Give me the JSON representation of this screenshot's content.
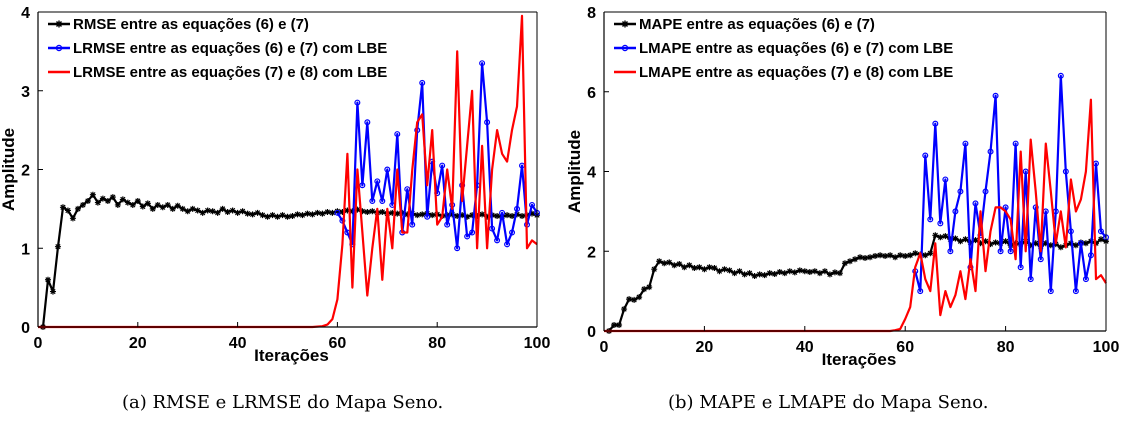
{
  "figure": {
    "captions": [
      "(a) RMSE e LRMSE do Mapa Seno.",
      "(b) MAPE e LMAPE do Mapa Seno."
    ]
  },
  "chart_data": [
    {
      "type": "line",
      "title": "",
      "xlabel": "Iterações",
      "ylabel": "Amplitude",
      "xlim": [
        0,
        100
      ],
      "ylim": [
        0,
        4
      ],
      "xticks": [
        "0",
        "20",
        "40",
        "60",
        "80",
        "100"
      ],
      "yticks": [
        "0",
        "1",
        "2",
        "3",
        "4"
      ],
      "legend_position": "top-left",
      "series": [
        {
          "name": "RMSE entre as equações (6) e (7)",
          "color": "#000000",
          "marker": "star",
          "x": [
            1,
            2,
            3,
            4,
            5,
            6,
            7,
            8,
            9,
            10,
            11,
            12,
            13,
            14,
            15,
            16,
            17,
            18,
            19,
            20,
            21,
            22,
            23,
            24,
            25,
            26,
            27,
            28,
            29,
            30,
            31,
            32,
            33,
            34,
            35,
            36,
            37,
            38,
            39,
            40,
            41,
            42,
            43,
            44,
            45,
            46,
            47,
            48,
            49,
            50,
            51,
            52,
            53,
            54,
            55,
            56,
            57,
            58,
            59,
            60,
            61,
            62,
            63,
            64,
            65,
            66,
            67,
            68,
            69,
            70,
            71,
            72,
            73,
            74,
            75,
            76,
            77,
            78,
            79,
            80,
            81,
            82,
            83,
            84,
            85,
            86,
            87,
            88,
            89,
            90,
            91,
            92,
            93,
            94,
            95,
            96,
            97,
            98,
            99,
            100
          ],
          "y": [
            0,
            0.6,
            0.45,
            1.02,
            1.52,
            1.48,
            1.38,
            1.5,
            1.55,
            1.6,
            1.68,
            1.58,
            1.63,
            1.6,
            1.65,
            1.55,
            1.62,
            1.58,
            1.55,
            1.6,
            1.53,
            1.57,
            1.5,
            1.55,
            1.52,
            1.55,
            1.5,
            1.54,
            1.5,
            1.47,
            1.5,
            1.48,
            1.45,
            1.48,
            1.47,
            1.45,
            1.5,
            1.46,
            1.48,
            1.45,
            1.47,
            1.44,
            1.43,
            1.45,
            1.42,
            1.4,
            1.42,
            1.4,
            1.42,
            1.4,
            1.41,
            1.43,
            1.42,
            1.44,
            1.43,
            1.45,
            1.44,
            1.46,
            1.45,
            1.47,
            1.46,
            1.48,
            1.47,
            1.49,
            1.47,
            1.46,
            1.47,
            1.45,
            1.46,
            1.44,
            1.45,
            1.44,
            1.45,
            1.43,
            1.44,
            1.42,
            1.43,
            1.44,
            1.42,
            1.43,
            1.41,
            1.42,
            1.43,
            1.41,
            1.42,
            1.4,
            1.42,
            1.41,
            1.43,
            1.4,
            1.42,
            1.41,
            1.4,
            1.42,
            1.41,
            1.43,
            1.41,
            1.42,
            1.44,
            1.42
          ]
        },
        {
          "name": "LRMSE entre as equações (6) e (7) com LBE",
          "color": "#0000ff",
          "marker": "circle",
          "x": [
            60,
            61,
            62,
            63,
            64,
            65,
            66,
            67,
            68,
            69,
            70,
            71,
            72,
            73,
            74,
            75,
            76,
            77,
            78,
            79,
            80,
            81,
            82,
            83,
            84,
            85,
            86,
            87,
            88,
            89,
            90,
            91,
            92,
            93,
            94,
            95,
            96,
            97,
            98,
            99,
            100
          ],
          "y": [
            1.45,
            1.35,
            1.2,
            1.05,
            2.85,
            1.8,
            2.6,
            1.6,
            1.85,
            1.6,
            2.0,
            1.55,
            2.45,
            1.2,
            1.75,
            1.3,
            2.5,
            3.1,
            1.4,
            2.1,
            1.7,
            2.05,
            1.3,
            1.55,
            1.0,
            1.8,
            1.15,
            1.2,
            1.8,
            3.35,
            2.6,
            1.25,
            1.1,
            1.45,
            1.05,
            1.2,
            1.5,
            2.05,
            1.3,
            1.55,
            1.45
          ]
        },
        {
          "name": "LRMSE  entre as equações (7) e (8) com LBE",
          "color": "#ff0000",
          "marker": "none",
          "x": [
            0,
            10,
            20,
            30,
            40,
            50,
            55,
            57,
            58,
            59,
            60,
            61,
            62,
            63,
            64,
            65,
            66,
            67,
            68,
            69,
            70,
            71,
            72,
            73,
            74,
            75,
            76,
            77,
            78,
            79,
            80,
            81,
            82,
            83,
            84,
            85,
            86,
            87,
            88,
            89,
            90,
            91,
            92,
            93,
            94,
            95,
            96,
            97,
            98,
            99,
            100
          ],
          "y": [
            0,
            0,
            0,
            0,
            0,
            0,
            0,
            0.01,
            0.03,
            0.1,
            0.35,
            1.05,
            2.2,
            0.5,
            2.0,
            1.2,
            0.4,
            1.0,
            1.5,
            0.6,
            1.5,
            1.0,
            2.0,
            1.2,
            1.2,
            2.0,
            2.6,
            2.7,
            1.8,
            2.5,
            1.3,
            1.4,
            2.0,
            1.5,
            3.5,
            1.6,
            2.3,
            3.0,
            1.0,
            2.3,
            1.0,
            2.0,
            2.5,
            2.2,
            2.1,
            2.5,
            2.8,
            3.95,
            1.0,
            1.1,
            1.05
          ]
        }
      ]
    },
    {
      "type": "line",
      "title": "",
      "xlabel": "Iterações",
      "ylabel": "Amplitude",
      "xlim": [
        0,
        100
      ],
      "ylim": [
        0,
        8
      ],
      "xticks": [
        "0",
        "20",
        "40",
        "60",
        "80",
        "100"
      ],
      "yticks": [
        "0",
        "2",
        "4",
        "6",
        "8"
      ],
      "legend_position": "top-left",
      "series": [
        {
          "name": "MAPE entre as equações (6) e (7)",
          "color": "#000000",
          "marker": "star",
          "x": [
            1,
            2,
            3,
            4,
            5,
            6,
            7,
            8,
            9,
            10,
            11,
            12,
            13,
            14,
            15,
            16,
            17,
            18,
            19,
            20,
            21,
            22,
            23,
            24,
            25,
            26,
            27,
            28,
            29,
            30,
            31,
            32,
            33,
            34,
            35,
            36,
            37,
            38,
            39,
            40,
            41,
            42,
            43,
            44,
            45,
            46,
            47,
            48,
            49,
            50,
            51,
            52,
            53,
            54,
            55,
            56,
            57,
            58,
            59,
            60,
            61,
            62,
            63,
            64,
            65,
            66,
            67,
            68,
            69,
            70,
            71,
            72,
            73,
            74,
            75,
            76,
            77,
            78,
            79,
            80,
            81,
            82,
            83,
            84,
            85,
            86,
            87,
            88,
            89,
            90,
            91,
            92,
            93,
            94,
            95,
            96,
            97,
            98,
            99,
            100
          ],
          "y": [
            0,
            0.15,
            0.15,
            0.55,
            0.8,
            0.78,
            0.85,
            1.05,
            1.1,
            1.55,
            1.75,
            1.7,
            1.72,
            1.65,
            1.68,
            1.6,
            1.65,
            1.58,
            1.6,
            1.55,
            1.6,
            1.58,
            1.5,
            1.55,
            1.52,
            1.45,
            1.5,
            1.42,
            1.45,
            1.38,
            1.42,
            1.4,
            1.45,
            1.43,
            1.48,
            1.45,
            1.5,
            1.47,
            1.52,
            1.5,
            1.48,
            1.5,
            1.45,
            1.5,
            1.42,
            1.47,
            1.45,
            1.7,
            1.75,
            1.8,
            1.85,
            1.83,
            1.85,
            1.88,
            1.9,
            1.88,
            1.9,
            1.85,
            1.9,
            1.88,
            1.9,
            1.95,
            1.92,
            1.9,
            1.95,
            2.4,
            2.35,
            2.38,
            2.3,
            2.32,
            2.25,
            2.3,
            2.22,
            2.28,
            2.2,
            2.25,
            2.18,
            2.22,
            2.2,
            2.25,
            2.15,
            2.2,
            2.18,
            2.25,
            2.15,
            2.2,
            2.12,
            2.2,
            2.15,
            2.18,
            2.1,
            2.15,
            2.2,
            2.15,
            2.22,
            2.2,
            2.25,
            2.2,
            2.3,
            2.25
          ]
        },
        {
          "name": "LMAPE entre as equações (6) e (7) com LBE",
          "color": "#0000ff",
          "marker": "circle",
          "x": [
            62,
            63,
            64,
            65,
            66,
            67,
            68,
            69,
            70,
            71,
            72,
            73,
            74,
            75,
            76,
            77,
            78,
            79,
            80,
            81,
            82,
            83,
            84,
            85,
            86,
            87,
            88,
            89,
            90,
            91,
            92,
            93,
            94,
            95,
            96,
            97,
            98,
            99,
            100
          ],
          "y": [
            1.5,
            1.0,
            4.4,
            2.8,
            5.2,
            2.7,
            3.8,
            2.0,
            3.0,
            3.5,
            4.7,
            1.6,
            3.2,
            2.4,
            3.5,
            4.5,
            5.9,
            2.0,
            3.1,
            2.0,
            4.7,
            1.6,
            4.0,
            1.3,
            3.1,
            1.8,
            3.0,
            1.0,
            3.0,
            6.4,
            4.0,
            2.5,
            1.0,
            2.2,
            1.3,
            1.9,
            4.2,
            2.5,
            2.35
          ]
        },
        {
          "name": "LMAPE entre as equações (7) e (8) com LBE",
          "color": "#ff0000",
          "marker": "none",
          "x": [
            0,
            10,
            20,
            30,
            40,
            50,
            57,
            58,
            59,
            60,
            61,
            62,
            63,
            64,
            65,
            66,
            67,
            68,
            69,
            70,
            71,
            72,
            73,
            74,
            75,
            76,
            77,
            78,
            79,
            80,
            81,
            82,
            83,
            84,
            85,
            86,
            87,
            88,
            89,
            90,
            91,
            92,
            93,
            94,
            95,
            96,
            97,
            98,
            99,
            100
          ],
          "y": [
            0,
            0,
            0,
            0,
            0,
            0,
            0,
            0.02,
            0.05,
            0.3,
            0.6,
            1.6,
            1.95,
            1.3,
            1.0,
            2.2,
            0.4,
            1.0,
            0.6,
            0.9,
            1.5,
            0.8,
            1.8,
            1.0,
            3.0,
            1.5,
            2.5,
            3.1,
            3.1,
            3.0,
            2.8,
            1.8,
            4.5,
            2.0,
            4.8,
            3.5,
            2.0,
            4.7,
            3.5,
            2.2,
            3.0,
            2.1,
            3.8,
            3.0,
            3.3,
            4.0,
            5.8,
            1.3,
            1.4,
            1.2
          ]
        }
      ]
    }
  ]
}
